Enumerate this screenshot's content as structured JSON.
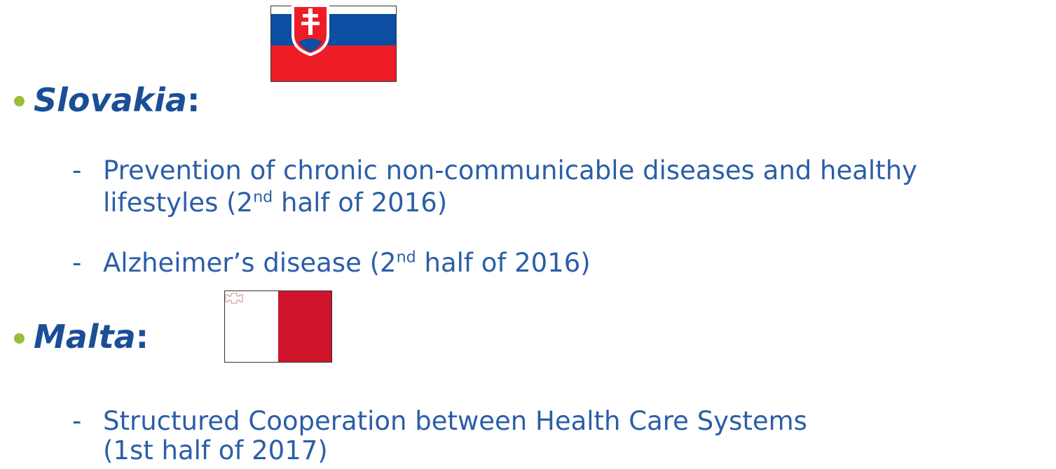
{
  "sections": [
    {
      "country": "Slovakia",
      "colon": ":",
      "items": [
        {
          "dash": "-",
          "lines": [
            {
              "text": "Prevention of chronic non-communicable diseases and healthy"
            },
            {
              "text": "lifestyles (2",
              "sup": "nd",
              "rest": " half of 2016)"
            }
          ]
        },
        {
          "dash": "-",
          "lines": [
            {
              "text": "Alzheimer’s disease (2",
              "sup": "nd",
              "rest": " half of 2016)"
            }
          ]
        }
      ]
    },
    {
      "country": "Malta",
      "colon": ":",
      "items": [
        {
          "dash": "-",
          "lines": [
            {
              "text": "Structured Cooperation between Health Care Systems"
            },
            {
              "text": "(1st half of 2017)"
            }
          ]
        }
      ]
    }
  ]
}
